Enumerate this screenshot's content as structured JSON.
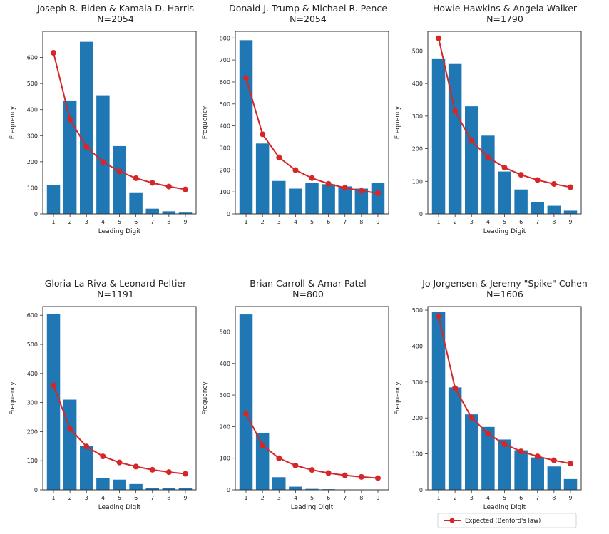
{
  "colors": {
    "bar": "#1f77b4",
    "expected": "#d62728"
  },
  "legend": {
    "label": "Expected (Benford's law)",
    "placement": "below last panel"
  },
  "chart_data": [
    {
      "type": "bar",
      "title": "Joseph R. Biden & Kamala D. Harris",
      "subtitle": "N=2054",
      "xlabel": "Leading Digit",
      "ylabel": "Frequency",
      "categories": [
        "1",
        "2",
        "3",
        "4",
        "5",
        "6",
        "7",
        "8",
        "9"
      ],
      "values": [
        110,
        435,
        660,
        455,
        260,
        80,
        20,
        10,
        5
      ],
      "expected": [
        618,
        362,
        257,
        199,
        163,
        137,
        119,
        105,
        94
      ],
      "ylim": [
        0,
        700
      ],
      "yticks": [
        0,
        100,
        200,
        300,
        400,
        500,
        600
      ]
    },
    {
      "type": "bar",
      "title": "Donald J. Trump & Michael R. Pence",
      "subtitle": "N=2054",
      "xlabel": "",
      "ylabel": "Frequency",
      "categories": [
        "1",
        "2",
        "3",
        "4",
        "5",
        "6",
        "7",
        "8",
        "9"
      ],
      "values": [
        790,
        320,
        150,
        115,
        140,
        135,
        125,
        115,
        140
      ],
      "expected": [
        618,
        362,
        257,
        199,
        163,
        137,
        119,
        105,
        94
      ],
      "ylim": [
        0,
        830
      ],
      "yticks": [
        0,
        100,
        200,
        300,
        400,
        500,
        600,
        700,
        800
      ]
    },
    {
      "type": "bar",
      "title": "Howie Hawkins & Angela Walker",
      "subtitle": "N=1790",
      "xlabel": "Leading Digit",
      "ylabel": "Frequency",
      "categories": [
        "1",
        "2",
        "3",
        "4",
        "5",
        "6",
        "7",
        "8",
        "9"
      ],
      "values": [
        475,
        460,
        330,
        240,
        130,
        75,
        35,
        25,
        10
      ],
      "expected": [
        539,
        315,
        224,
        174,
        142,
        120,
        104,
        92,
        82
      ],
      "ylim": [
        0,
        560
      ],
      "yticks": [
        0,
        100,
        200,
        300,
        400,
        500
      ]
    },
    {
      "type": "bar",
      "title": "Gloria La Riva & Leonard Peltier",
      "subtitle": "N=1191",
      "xlabel": "Leading Digit",
      "ylabel": "Frequency",
      "categories": [
        "1",
        "2",
        "3",
        "4",
        "5",
        "6",
        "7",
        "8",
        "9"
      ],
      "values": [
        605,
        310,
        150,
        40,
        35,
        20,
        5,
        5,
        5
      ],
      "expected": [
        359,
        210,
        149,
        115,
        94,
        80,
        69,
        61,
        55
      ],
      "ylim": [
        0,
        630
      ],
      "yticks": [
        0,
        100,
        200,
        300,
        400,
        500,
        600
      ]
    },
    {
      "type": "bar",
      "title": "Brian Carroll & Amar Patel",
      "subtitle": "N=800",
      "xlabel": "Leading Digit",
      "ylabel": "Frequency",
      "categories": [
        "1",
        "2",
        "3",
        "4",
        "5",
        "6",
        "7",
        "8",
        "9"
      ],
      "values": [
        555,
        180,
        40,
        10,
        3,
        2,
        1,
        1,
        1
      ],
      "expected": [
        241,
        141,
        100,
        77,
        63,
        53,
        46,
        41,
        37
      ],
      "ylim": [
        0,
        580
      ],
      "yticks": [
        0,
        100,
        200,
        300,
        400,
        500
      ]
    },
    {
      "type": "bar",
      "title": "Jo Jorgensen & Jeremy \"Spike\" Cohen",
      "subtitle": "N=1606",
      "xlabel": "Leading Digit",
      "ylabel": "Frequency",
      "categories": [
        "1",
        "2",
        "3",
        "4",
        "5",
        "6",
        "7",
        "8",
        "9"
      ],
      "values": [
        495,
        285,
        210,
        175,
        140,
        110,
        90,
        65,
        30
      ],
      "expected": [
        483,
        283,
        201,
        156,
        127,
        107,
        93,
        82,
        73
      ],
      "ylim": [
        0,
        510
      ],
      "yticks": [
        0,
        100,
        200,
        300,
        400,
        500
      ]
    }
  ]
}
